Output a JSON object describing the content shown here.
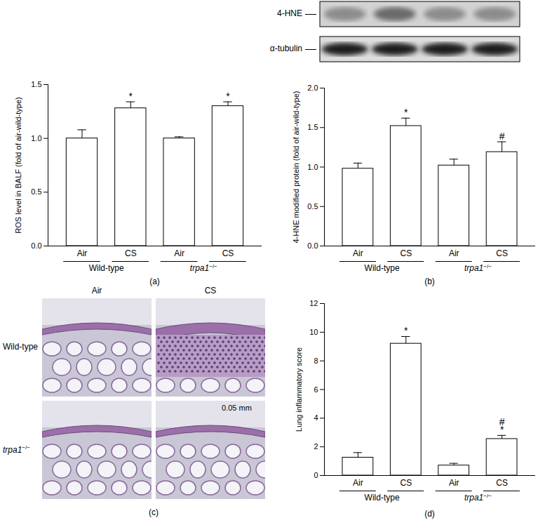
{
  "chart_data": [
    {
      "type": "bar",
      "caption": "(a)",
      "y_label": "ROS level in BALF (fold of air-wild-type)",
      "categories": [
        "Air",
        "CS",
        "Air",
        "CS"
      ],
      "group_of": [
        "Wild-type",
        "Wild-type",
        "trpa1−/−",
        "trpa1−/−"
      ],
      "values": [
        1.0,
        1.28,
        1.0,
        1.3
      ],
      "errors": [
        0.08,
        0.06,
        0.015,
        0.04
      ],
      "annotations": [
        [],
        [
          "*"
        ],
        [],
        [
          "*"
        ]
      ],
      "color": "#ffffff",
      "ylim": [
        0,
        1.5
      ],
      "yticks": [
        {
          "value": 0,
          "label": "0.0"
        },
        0.5,
        {
          "value": 1,
          "label": "1.0"
        },
        1.5
      ]
    },
    {
      "type": "bar",
      "caption": "(b)",
      "y_label": "4-HNE modified protein (fold of air-wild-type)",
      "categories": [
        "Air",
        "CS",
        "Air",
        "CS"
      ],
      "group_of": [
        "Wild-type",
        "Wild-type",
        "trpa1−/−",
        "trpa1−/−"
      ],
      "values": [
        0.98,
        1.52,
        1.02,
        1.19
      ],
      "errors": [
        0.07,
        0.1,
        0.08,
        0.13
      ],
      "annotations": [
        [],
        [
          "*"
        ],
        [],
        [
          "#"
        ]
      ],
      "color": "#ffffff",
      "ylim": [
        0,
        2
      ],
      "yticks": [
        {
          "value": 0,
          "label": "0.0"
        },
        0.5,
        {
          "value": 1,
          "label": "1.0"
        },
        1.5,
        {
          "value": 2,
          "label": "2.0"
        }
      ]
    },
    {
      "type": "bar",
      "caption": "(d)",
      "y_label": "Lung inflammatory score",
      "categories": [
        "Air",
        "CS",
        "Air",
        "CS"
      ],
      "group_of": [
        "Wild-type",
        "Wild-type",
        "trpa1−/−",
        "trpa1−/−"
      ],
      "values": [
        1.25,
        9.2,
        0.7,
        2.55
      ],
      "errors": [
        0.35,
        0.5,
        0.15,
        0.25
      ],
      "annotations": [
        [],
        [
          "*"
        ],
        [],
        [
          "#",
          "*"
        ]
      ],
      "color": "#ffffff",
      "ylim": [
        0,
        12
      ],
      "yticks": [
        0,
        2,
        4,
        6,
        8,
        10,
        12
      ]
    }
  ],
  "blot": {
    "labels": [
      "4-HNE",
      "α-tubulin"
    ]
  },
  "histology": {
    "caption": "(c)",
    "columns": [
      "Air",
      "CS"
    ],
    "rows": [
      "Wild-type",
      "trpa1−/−"
    ],
    "scale_bar": "0.05 mm"
  }
}
